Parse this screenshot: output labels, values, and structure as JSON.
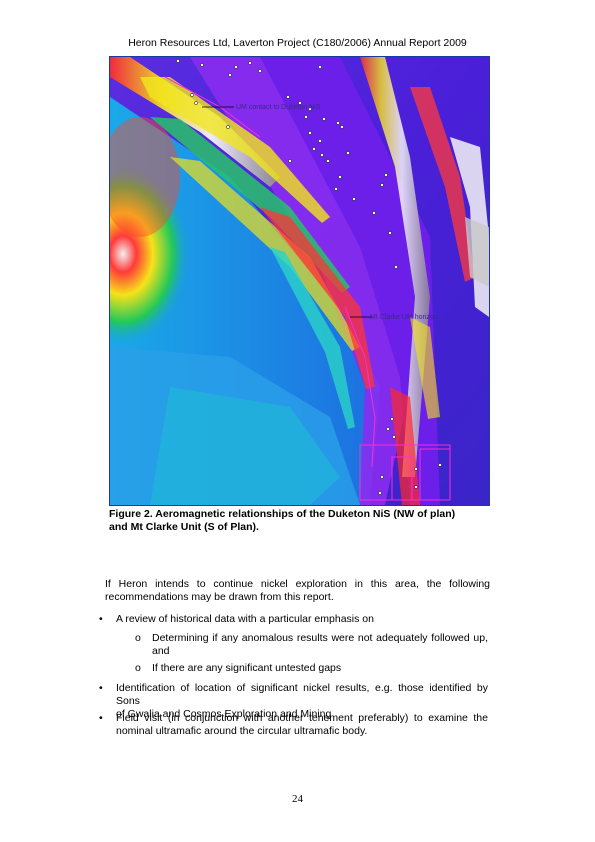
{
  "header": {
    "title": "Heron Resources Ltd, Laverton Project (C180/2006) Annual Report 2009"
  },
  "figure": {
    "annotations": {
      "um_contact": "UM contact to Duketon NiS",
      "mt_clarke": "Mt Clarke UM horizon"
    },
    "caption_line1": "Figure 2. Aeromagnetic relationships of the Duketon NiS (NW of plan)",
    "caption_line2": "and Mt Clarke Unit (S of Plan)."
  },
  "body": {
    "intro_line1": "If Heron intends to continue nickel exploration in this area, the following",
    "intro_line2": "recommendations may be drawn from this report.",
    "bullets": [
      {
        "text": "A review of historical data with a particular emphasis on"
      },
      {
        "text_line1": "Determining if any anomalous results were not adequately followed up,",
        "text_line2": "and"
      },
      {
        "text": "If there are any significant untested gaps"
      },
      {
        "text_line1": "Identification of location of significant nickel results, e.g. those identified by Sons",
        "text_line2": "of Gwalia and Cosmos Exploration and Mining"
      },
      {
        "text_line1": "Field visit (in conjunction with another tenement preferably) to examine the",
        "text_line2": "nominal ultramafic around the circular ultramafic body."
      }
    ],
    "bullet_symbol": "•",
    "sub_bullet_symbol": "o"
  },
  "footer": {
    "page_number": "24"
  }
}
